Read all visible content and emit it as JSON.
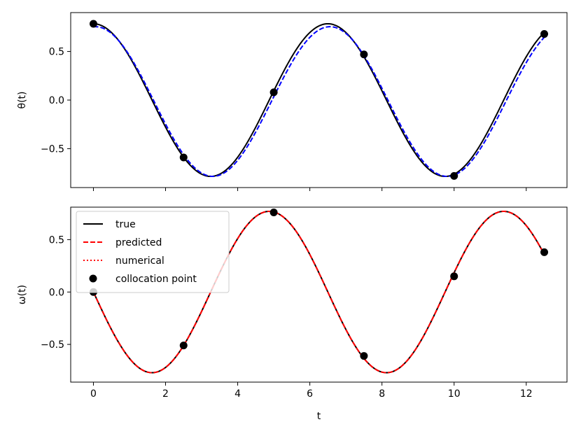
{
  "chart_data": [
    {
      "type": "line",
      "ylabel": "θ(t)",
      "xlim": [
        -0.63,
        13.13
      ],
      "ylim": [
        -0.9,
        0.9
      ],
      "xticks": [
        0,
        2,
        4,
        6,
        8,
        10,
        12
      ],
      "yticks": [
        {
          "value": 0.5,
          "label": "0.5"
        },
        {
          "value": 0.0,
          "label": "0.0"
        },
        {
          "value": -0.5,
          "label": "−0.5"
        }
      ],
      "series": [
        {
          "style": "solid",
          "color": "#000000",
          "function": "theta_true",
          "amp": 0.785,
          "x_range": [
            0,
            12.5
          ]
        },
        {
          "style": "dashed",
          "color": "#0000ff",
          "function": "theta_pred",
          "amp": 0.755,
          "offset": -0.03,
          "x_range": [
            0,
            12.5
          ]
        }
      ],
      "points": [
        {
          "x": 0,
          "y": 0.785
        },
        {
          "x": 2.5,
          "y": -0.59
        },
        {
          "x": 5.0,
          "y": 0.08
        },
        {
          "x": 7.5,
          "y": 0.47
        },
        {
          "x": 10.0,
          "y": -0.78
        },
        {
          "x": 12.5,
          "y": 0.68
        }
      ]
    },
    {
      "type": "line",
      "xlabel": "t",
      "ylabel": "ω(t)",
      "xlim": [
        -0.63,
        13.13
      ],
      "ylim": [
        -0.86,
        0.81
      ],
      "xticks": [
        0,
        2,
        4,
        6,
        8,
        10,
        12
      ],
      "yticks": [
        {
          "value": 0.5,
          "label": "0.5"
        },
        {
          "value": 0.0,
          "label": "0.0"
        },
        {
          "value": -0.5,
          "label": "−0.5"
        }
      ],
      "series": [
        {
          "name": "true",
          "style": "solid",
          "color": "#000000",
          "function": "omega"
        },
        {
          "name": "predicted",
          "style": "dashed",
          "color": "#ff0000",
          "function": "omega"
        },
        {
          "name": "numerical",
          "style": "dotted",
          "color": "#ff0000",
          "function": "omega"
        }
      ],
      "points_name": "collocation point",
      "points": [
        {
          "x": 0,
          "y": 0.0
        },
        {
          "x": 2.5,
          "y": -0.51
        },
        {
          "x": 5.0,
          "y": 0.76
        },
        {
          "x": 7.5,
          "y": -0.61
        },
        {
          "x": 10.0,
          "y": 0.15
        },
        {
          "x": 12.5,
          "y": 0.38
        }
      ],
      "legend": {
        "position": "upper-left",
        "entries": [
          {
            "label": "true",
            "kind": "line",
            "style": "solid",
            "color": "#000000"
          },
          {
            "label": "predicted",
            "kind": "line",
            "style": "dashed",
            "color": "#ff0000"
          },
          {
            "label": "numerical",
            "kind": "line",
            "style": "dotted",
            "color": "#ff0000"
          },
          {
            "label": "collocation point",
            "kind": "marker",
            "color": "#000000"
          }
        ]
      }
    }
  ]
}
